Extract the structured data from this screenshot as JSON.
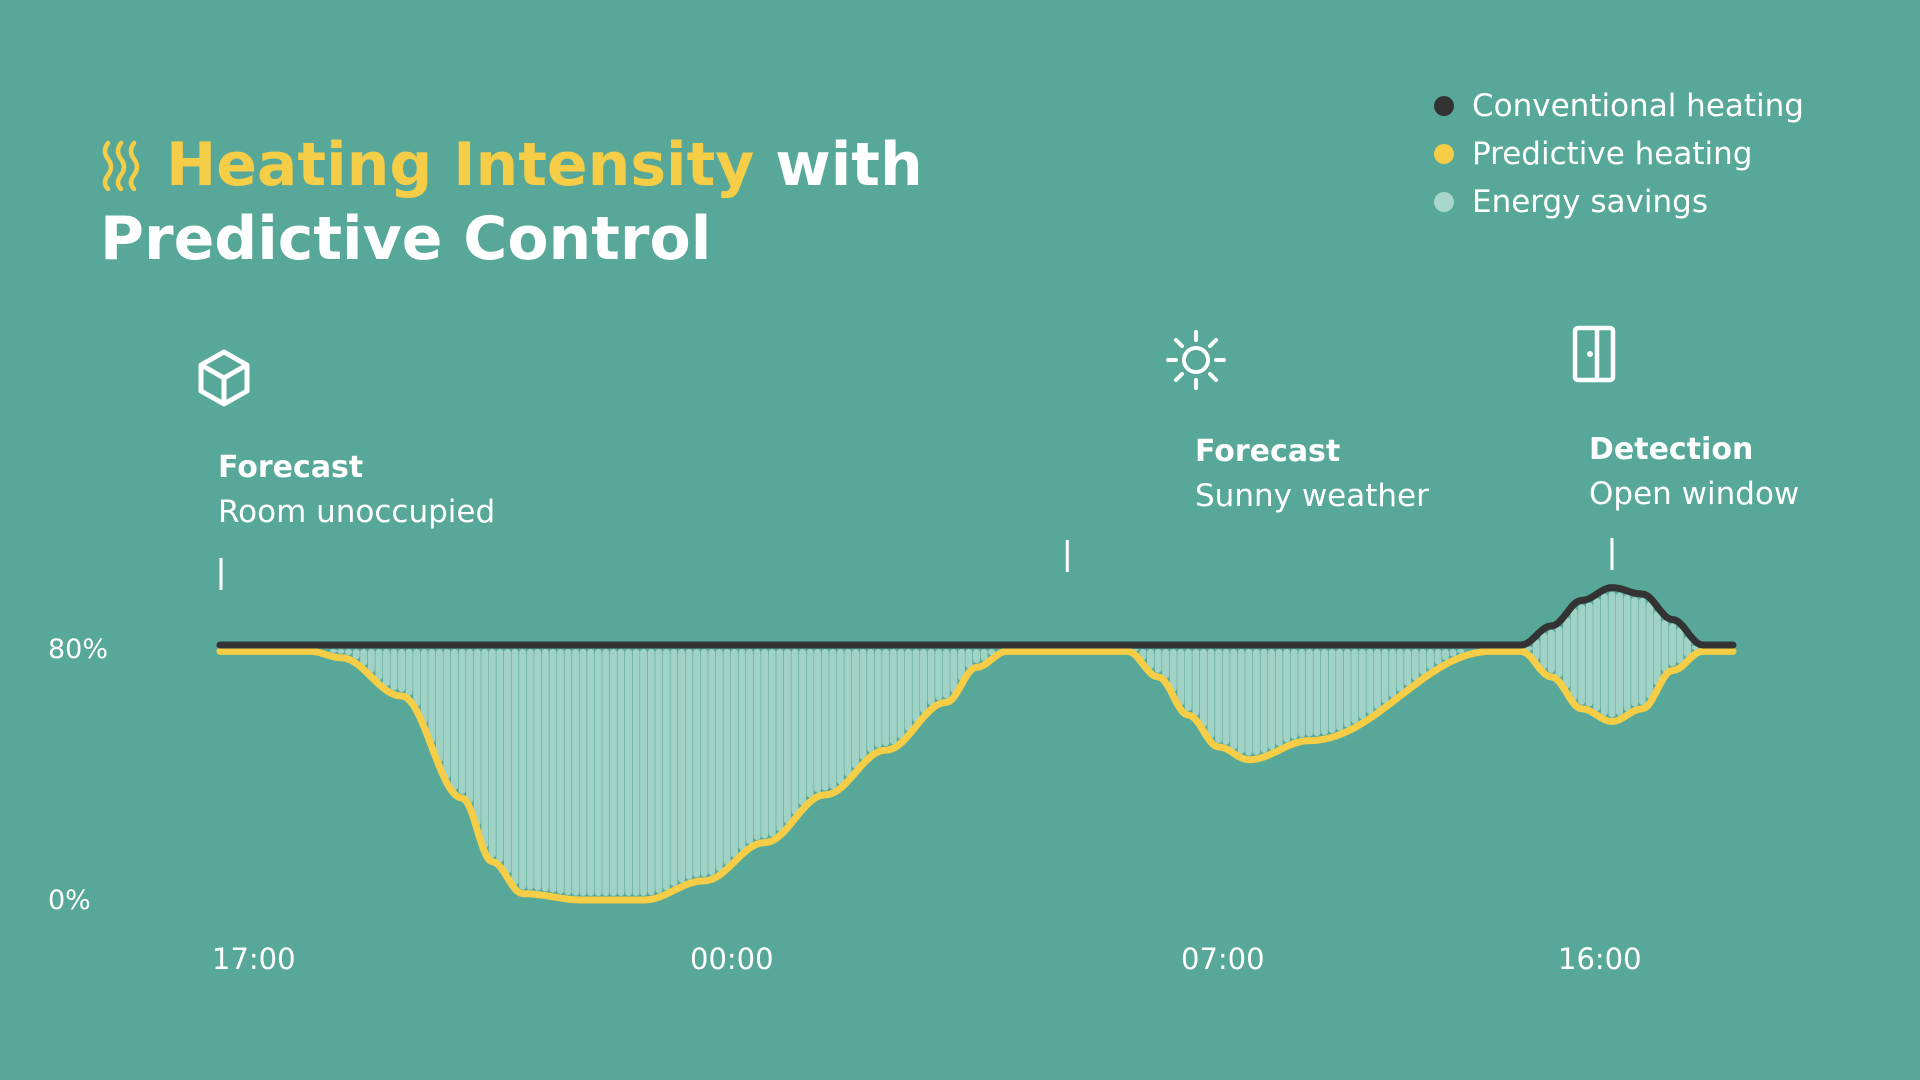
{
  "title": {
    "part1": "Heating Intensity",
    "part2": " with",
    "line2": "Predictive Control",
    "icon": "heat-waves-icon"
  },
  "legend": [
    {
      "label": "Conventional heating",
      "color": "#333333"
    },
    {
      "label": "Predictive heating",
      "color": "#f5cd47"
    },
    {
      "label": "Energy savings",
      "color": "#a9d6cb"
    }
  ],
  "events": [
    {
      "title": "Forecast",
      "desc": "Room unoccupied",
      "icon": "cube-icon",
      "at_hours": 0
    },
    {
      "title": "Forecast",
      "desc": "Sunny weather",
      "icon": "sun-icon",
      "at_hours": 14
    },
    {
      "title": "Detection",
      "desc": "Open window",
      "icon": "door-icon",
      "at_hours": 23
    }
  ],
  "colors": {
    "background": "#57a898",
    "conventional": "#333333",
    "predictive": "#f5cd47",
    "savings": "#a9d6cb",
    "accent": "#f5cd47"
  },
  "chart_data": {
    "type": "line",
    "title": "Heating Intensity with Predictive Control",
    "xlabel": "",
    "ylabel": "",
    "y_tick_labels": [
      "80%",
      "0%"
    ],
    "y_ticks": [
      80,
      0
    ],
    "ylim": [
      0,
      100
    ],
    "x_tick_labels": [
      "17:00",
      "00:00",
      "07:00",
      "16:00"
    ],
    "x_ticks_hours": [
      0,
      7,
      14,
      23
    ],
    "xlim_hours": [
      0,
      25
    ],
    "legend_position": "top-right",
    "grid": false,
    "series": [
      {
        "name": "Conventional heating",
        "x_hours": [
          0,
          1.5,
          21,
          21.5,
          22,
          22.5,
          23,
          23.5,
          24,
          24.5,
          25.0
        ],
        "values": [
          80,
          80,
          80,
          80,
          86,
          94,
          98,
          96,
          88,
          80,
          80
        ]
      },
      {
        "name": "Predictive heating",
        "x_hours": [
          0,
          1.5,
          2,
          3,
          4,
          4.5,
          5,
          6,
          6.5,
          7,
          8,
          9,
          10,
          11,
          12,
          12.5,
          13,
          14,
          15,
          15.5,
          16,
          16.5,
          17,
          18,
          21,
          21.5,
          22,
          22.5,
          23,
          23.5,
          24,
          24.5,
          25.0
        ],
        "values": [
          78,
          78,
          76,
          64,
          32,
          12,
          2,
          0,
          0,
          0,
          6,
          18,
          33,
          47,
          62,
          73,
          78,
          78,
          78,
          70,
          58,
          48,
          44,
          50,
          78,
          78,
          70,
          60,
          56,
          60,
          72,
          78,
          78
        ]
      }
    ],
    "shaded_area": {
      "name": "Energy savings",
      "between": [
        "Conventional heating",
        "Predictive heating"
      ]
    }
  }
}
